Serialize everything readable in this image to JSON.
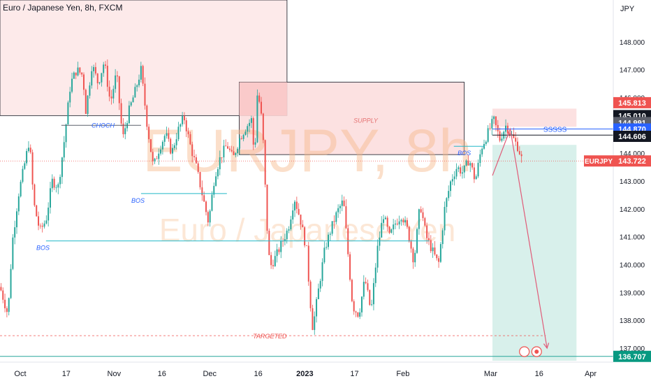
{
  "title": "Euro / Japanese Yen, 8h, FXCM",
  "watermark": {
    "symbol": "EURJPY, 8h",
    "name": "Euro / Japanese Yen"
  },
  "axis_unit": "JPY",
  "colors": {
    "up": "#26a69a",
    "down": "#ef5350",
    "zone_fill": "#fde8e8",
    "supply_fill": "#fcdcdc",
    "target_fill": "#d1ede8",
    "bos_line": "#22b8c8",
    "arrow": "#e05b78",
    "watermark": "#f7b98a"
  },
  "chart_data": {
    "type": "candlestick",
    "ylim": [
      136.5,
      149.5
    ],
    "y_ticks": [
      137.0,
      138.0,
      139.0,
      140.0,
      141.0,
      142.0,
      143.0,
      144.0,
      145.0,
      146.0,
      147.0,
      148.0,
      149.0
    ],
    "y_tick_labels": [
      "137.000",
      "138.000",
      "139.000",
      "140.000",
      "141.000",
      "142.000",
      "143.000",
      "144.000",
      "145.000",
      "146.000",
      "147.000",
      "148.000",
      "149.000"
    ],
    "x_ticks": [
      {
        "label": "Oct",
        "pos": 0.033
      },
      {
        "label": "17",
        "pos": 0.108
      },
      {
        "label": "Nov",
        "pos": 0.186
      },
      {
        "label": "16",
        "pos": 0.264
      },
      {
        "label": "Dec",
        "pos": 0.342
      },
      {
        "label": "16",
        "pos": 0.421
      },
      {
        "label": "2023",
        "pos": 0.497
      },
      {
        "label": "17",
        "pos": 0.578
      },
      {
        "label": "Feb",
        "pos": 0.657
      },
      {
        "label": "Mar",
        "pos": 0.8
      },
      {
        "label": "16",
        "pos": 0.879
      },
      {
        "label": "Apr",
        "pos": 0.963
      }
    ],
    "price_path": [
      [
        0.0,
        139.2
      ],
      [
        0.013,
        138.2
      ],
      [
        0.02,
        140.8
      ],
      [
        0.03,
        142.5
      ],
      [
        0.04,
        143.6
      ],
      [
        0.048,
        144.5
      ],
      [
        0.055,
        142.2
      ],
      [
        0.065,
        141.2
      ],
      [
        0.075,
        141.6
      ],
      [
        0.085,
        143.0
      ],
      [
        0.095,
        142.8
      ],
      [
        0.105,
        144.5
      ],
      [
        0.115,
        146.5
      ],
      [
        0.125,
        147.0
      ],
      [
        0.135,
        146.8
      ],
      [
        0.14,
        145.5
      ],
      [
        0.15,
        147.2
      ],
      [
        0.16,
        146.5
      ],
      [
        0.17,
        147.3
      ],
      [
        0.18,
        145.8
      ],
      [
        0.19,
        146.9
      ],
      [
        0.2,
        144.5
      ],
      [
        0.21,
        145.5
      ],
      [
        0.22,
        146.2
      ],
      [
        0.23,
        147.0
      ],
      [
        0.24,
        145.0
      ],
      [
        0.25,
        143.5
      ],
      [
        0.26,
        144.2
      ],
      [
        0.27,
        144.7
      ],
      [
        0.28,
        144.0
      ],
      [
        0.29,
        144.8
      ],
      [
        0.3,
        145.3
      ],
      [
        0.31,
        144.3
      ],
      [
        0.32,
        143.5
      ],
      [
        0.33,
        142.5
      ],
      [
        0.34,
        141.5
      ],
      [
        0.35,
        143.2
      ],
      [
        0.36,
        143.9
      ],
      [
        0.37,
        144.3
      ],
      [
        0.38,
        143.8
      ],
      [
        0.39,
        144.5
      ],
      [
        0.4,
        144.9
      ],
      [
        0.41,
        145.2
      ],
      [
        0.415,
        143.8
      ],
      [
        0.42,
        146.3
      ],
      [
        0.428,
        145.0
      ],
      [
        0.435,
        141.5
      ],
      [
        0.44,
        139.9
      ],
      [
        0.45,
        140.3
      ],
      [
        0.46,
        140.8
      ],
      [
        0.47,
        141.3
      ],
      [
        0.48,
        142.4
      ],
      [
        0.49,
        141.6
      ],
      [
        0.5,
        140.5
      ],
      [
        0.505,
        138.9
      ],
      [
        0.51,
        137.7
      ],
      [
        0.52,
        139.2
      ],
      [
        0.53,
        140.6
      ],
      [
        0.54,
        141.3
      ],
      [
        0.55,
        141.9
      ],
      [
        0.56,
        142.3
      ],
      [
        0.567,
        140.5
      ],
      [
        0.575,
        138.5
      ],
      [
        0.585,
        138.2
      ],
      [
        0.595,
        139.5
      ],
      [
        0.605,
        138.3
      ],
      [
        0.615,
        140.5
      ],
      [
        0.625,
        141.8
      ],
      [
        0.635,
        141.0
      ],
      [
        0.645,
        141.5
      ],
      [
        0.655,
        141.8
      ],
      [
        0.665,
        141.2
      ],
      [
        0.675,
        140.1
      ],
      [
        0.685,
        142.2
      ],
      [
        0.695,
        141.0
      ],
      [
        0.705,
        140.5
      ],
      [
        0.715,
        140.0
      ],
      [
        0.725,
        142.0
      ],
      [
        0.735,
        143.0
      ],
      [
        0.745,
        143.5
      ],
      [
        0.755,
        143.3
      ],
      [
        0.765,
        143.8
      ],
      [
        0.775,
        143.0
      ],
      [
        0.785,
        144.2
      ],
      [
        0.795,
        144.7
      ],
      [
        0.805,
        145.2
      ],
      [
        0.815,
        144.5
      ],
      [
        0.825,
        145.0
      ],
      [
        0.835,
        144.6
      ],
      [
        0.845,
        144.2
      ],
      [
        0.852,
        143.7
      ]
    ],
    "horizontal_levels": [
      {
        "label": "BOS",
        "price": 142.55,
        "x_start": 0.23,
        "x_end": 0.37,
        "label_pos": 0.225
      },
      {
        "label": "BOS",
        "price": 140.85,
        "x_start": 0.075,
        "x_end": 0.7,
        "label_pos": 0.07
      },
      {
        "label": "BOS",
        "price": 144.25,
        "x_start": 0.74,
        "x_end": 0.79,
        "label_pos": 0.757
      },
      {
        "label": "CHOCH",
        "price": 145.0,
        "x_start": 0.1,
        "x_end": 0.23,
        "label_pos": 0.168
      }
    ],
    "zones": [
      {
        "kind": "resistance",
        "x_start": 0.0,
        "x_end": 0.468,
        "y_top": 149.5,
        "y_bottom": 145.35
      },
      {
        "kind": "supply",
        "label": "SUPPLY",
        "x_start": 0.39,
        "x_end": 0.757,
        "y_top": 146.55,
        "y_bottom": 143.95
      },
      {
        "kind": "order_block",
        "x_start": 0.39,
        "x_end": 0.468,
        "y_top": 146.55,
        "y_bottom": 145.35
      },
      {
        "kind": "stop",
        "x_start": 0.803,
        "x_end": 0.94,
        "y_top": 145.6,
        "y_bottom": 144.95
      },
      {
        "kind": "target",
        "x_start": 0.803,
        "x_end": 0.94,
        "y_top": 144.3,
        "y_bottom": 136.55
      }
    ],
    "targeted": {
      "label": "TARGETED",
      "price": 137.45
    },
    "trade_line": {
      "price": 144.87,
      "note": "SSSSS"
    },
    "projection": [
      [
        0.803,
        143.2
      ],
      [
        0.832,
        144.87
      ],
      [
        0.892,
        137.0
      ]
    ],
    "price_labels": [
      {
        "value": "145.813",
        "bg": "#ef5350",
        "fg": "#ffffff",
        "price": 145.813
      },
      {
        "value": "145.010",
        "bg": "#131722",
        "fg": "#ffffff",
        "price": 145.35
      },
      {
        "value": "144.991",
        "bg": "#5d606b",
        "fg": "#ffffff",
        "price": 145.1
      },
      {
        "value": "144.870",
        "bg": "#2962ff",
        "fg": "#ffffff",
        "price": 144.87
      },
      {
        "value": "144.606",
        "bg": "#131722",
        "fg": "#ffffff",
        "price": 144.606
      },
      {
        "value": "143.722",
        "bg": "#ef5350",
        "fg": "#ffffff",
        "price": 143.722
      },
      {
        "value": "136.707",
        "bg": "#089981",
        "fg": "#ffffff",
        "price": 136.707
      }
    ],
    "symbol_badge": "EURJPY",
    "current_price": 143.722
  }
}
